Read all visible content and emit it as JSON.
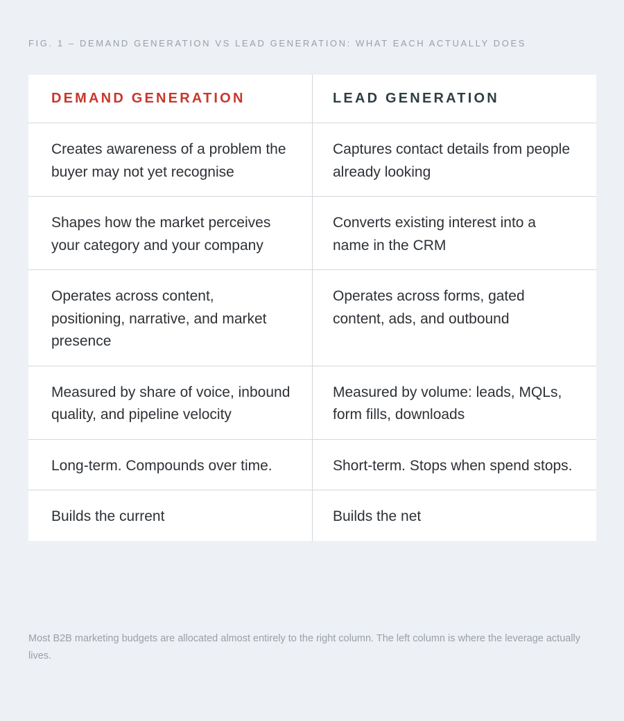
{
  "figure": {
    "caption": "FIG. 1 – DEMAND GENERATION VS LEAD GENERATION: WHAT EACH ACTUALLY DOES"
  },
  "table": {
    "headers": {
      "left": "DEMAND GENERATION",
      "right": "LEAD GENERATION"
    },
    "rows": [
      {
        "left": "Creates awareness of a problem the buyer may not yet recognise",
        "right": "Captures contact details from people already looking"
      },
      {
        "left": "Shapes how the market perceives your category and your company",
        "right": "Converts existing interest into a name in the CRM"
      },
      {
        "left": "Operates across content, positioning, narrative, and market presence",
        "right": "Operates across forms, gated content, ads, and outbound"
      },
      {
        "left": "Measured by share of voice, inbound quality, and pipeline velocity",
        "right": "Measured by volume: leads, MQLs, form fills, downloads"
      },
      {
        "left": "Long-term. Compounds over time.",
        "right": "Short-term. Stops when spend stops."
      },
      {
        "left": "Builds the current",
        "right": "Builds the net"
      }
    ]
  },
  "note": "Most B2B marketing budgets are allocated almost entirely to the right column. The left column is where the leverage actually lives.",
  "colors": {
    "background": "#edf0f4",
    "demand_accent": "#c8372d",
    "lead_header": "#2f3e44",
    "body_text": "#2d3136",
    "muted_text": "#9aa0a8",
    "divider": "#d3d6da"
  }
}
